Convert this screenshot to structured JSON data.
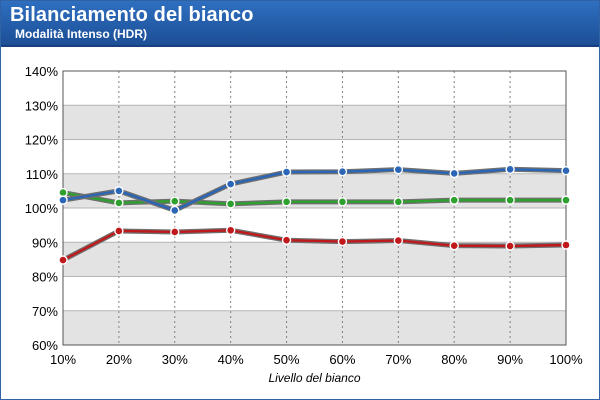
{
  "header": {
    "title": "Bilanciamento del bianco",
    "subtitle": "Modalità Intenso (HDR)"
  },
  "colors": {
    "header": "#2a64b0",
    "band": "#e3e3e3",
    "red": "#c0191c",
    "green": "#2ea02e",
    "blue": "#2a66b5"
  },
  "chart_data": {
    "type": "line",
    "title": "Bilanciamento del bianco",
    "subtitle": "Modalità Intenso (HDR)",
    "xlabel": "Livello del bianco",
    "ylabel": "",
    "categories": [
      "10%",
      "20%",
      "30%",
      "40%",
      "50%",
      "60%",
      "70%",
      "80%",
      "90%",
      "100%"
    ],
    "ylim": [
      60,
      140
    ],
    "yticks": [
      "60%",
      "70%",
      "80%",
      "90%",
      "100%",
      "110%",
      "120%",
      "130%",
      "140%"
    ],
    "ytick_values": [
      60,
      70,
      80,
      90,
      100,
      110,
      120,
      130,
      140
    ],
    "grid": true,
    "legend": "none",
    "series": [
      {
        "color": "#c0191c",
        "values": [
          84.8,
          93.3,
          93.0,
          93.5,
          90.6,
          90.2,
          90.5,
          89.0,
          88.9,
          89.2
        ]
      },
      {
        "color": "#2ea02e",
        "values": [
          104.5,
          101.5,
          102.0,
          101.2,
          101.8,
          101.8,
          101.8,
          102.3,
          102.3,
          102.3
        ]
      },
      {
        "color": "#2a66b5",
        "values": [
          102.3,
          105.0,
          99.3,
          107.0,
          110.5,
          110.6,
          111.2,
          110.1,
          111.3,
          110.9
        ]
      }
    ]
  }
}
